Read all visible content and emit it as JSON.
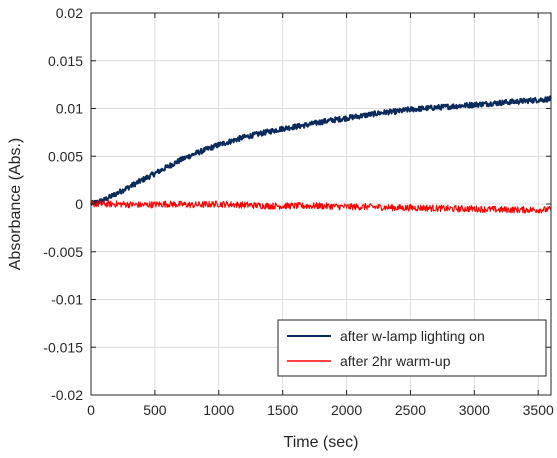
{
  "chart_data": {
    "type": "line",
    "title": "",
    "xlabel": "Time (sec)",
    "ylabel": "Absorbance (Abs.)",
    "xlim": [
      0,
      3600
    ],
    "ylim": [
      -0.02,
      0.02
    ],
    "xticks": [
      0,
      500,
      1000,
      1500,
      2000,
      2500,
      3000,
      3500
    ],
    "xtick_labels": [
      "0",
      "500",
      "1000",
      "1500",
      "2000",
      "2500",
      "3000",
      "3500"
    ],
    "yticks": [
      0.02,
      0.015,
      0.01,
      0.005,
      0,
      -0.005,
      -0.01,
      -0.015,
      -0.02
    ],
    "ytick_labels": [
      "0.02",
      "0.015",
      "0.01",
      "0.005",
      "0",
      "-0.005",
      "-0.01",
      "-0.015",
      "-0.02"
    ],
    "grid": true,
    "legend_position": "bottom-right",
    "series": [
      {
        "name": "after w-lamp lighting on",
        "color": "#0b2a5c",
        "x": [
          0,
          100,
          200,
          300,
          400,
          500,
          600,
          700,
          800,
          900,
          1000,
          1100,
          1200,
          1300,
          1400,
          1500,
          1600,
          1700,
          1800,
          1900,
          2000,
          2100,
          2200,
          2300,
          2400,
          2500,
          2600,
          2700,
          2800,
          2900,
          3000,
          3100,
          3200,
          3300,
          3400,
          3500,
          3600
        ],
        "y": [
          0,
          0.0004,
          0.0011,
          0.0018,
          0.0025,
          0.0032,
          0.0039,
          0.0046,
          0.0052,
          0.0057,
          0.0062,
          0.0066,
          0.007,
          0.0073,
          0.0076,
          0.0079,
          0.0081,
          0.0083,
          0.0086,
          0.0088,
          0.009,
          0.0092,
          0.0094,
          0.0096,
          0.0097,
          0.0099,
          0.01,
          0.0101,
          0.0102,
          0.0103,
          0.0104,
          0.0105,
          0.0106,
          0.0107,
          0.0108,
          0.0109,
          0.011
        ]
      },
      {
        "name": "after 2hr warm-up",
        "color": "#ff0000",
        "x": [
          0,
          200,
          400,
          600,
          800,
          1000,
          1200,
          1400,
          1600,
          1800,
          2000,
          2200,
          2400,
          2600,
          2800,
          3000,
          3200,
          3400,
          3600
        ],
        "y": [
          0,
          0,
          -0.0001,
          0,
          -0.0001,
          0,
          -0.0001,
          -0.0002,
          -0.0002,
          -0.0002,
          -0.0003,
          -0.0003,
          -0.0004,
          -0.0004,
          -0.0005,
          -0.0005,
          -0.0006,
          -0.0006,
          -0.0006
        ]
      }
    ]
  }
}
